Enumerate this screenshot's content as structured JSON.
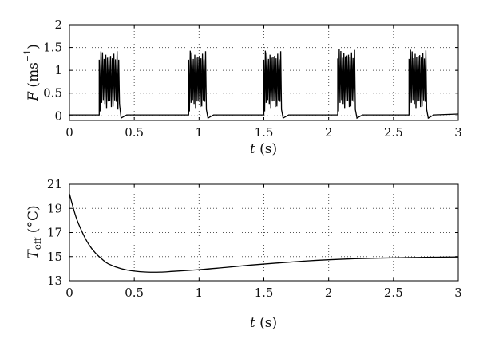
{
  "chart_data": [
    {
      "type": "line",
      "ylabel": "F (ms⁻¹)",
      "xlabel": "t (s)",
      "xlim": [
        0,
        3
      ],
      "ylim": [
        -0.1,
        2
      ],
      "x_ticks": [
        0,
        0.5,
        1,
        1.5,
        2,
        2.5,
        3
      ],
      "y_ticks": [
        0,
        0.5,
        1,
        1.5,
        2
      ],
      "x_tick_labels": [
        "0",
        "0.5",
        "1",
        "1.5",
        "2",
        "2.5",
        "3"
      ],
      "y_tick_labels": [
        "0",
        "0.5",
        "1",
        "1.5",
        "2"
      ],
      "grid": true,
      "series": [
        {
          "baseline": 0.02,
          "bursts": [
            {
              "start": 0.23,
              "end": 0.38,
              "peak": 1.45
            },
            {
              "start": 0.92,
              "end": 1.05,
              "peak": 1.45
            },
            {
              "start": 1.5,
              "end": 1.63,
              "peak": 1.45
            },
            {
              "start": 2.07,
              "end": 2.2,
              "peak": 1.48
            },
            {
              "start": 2.62,
              "end": 2.75,
              "peak": 1.47
            }
          ]
        }
      ]
    },
    {
      "type": "line",
      "ylabel": "T_eff (°C)",
      "xlabel": "t (s)",
      "xlim": [
        0,
        3
      ],
      "ylim": [
        13,
        21
      ],
      "x_ticks": [
        0,
        0.5,
        1,
        1.5,
        2,
        2.5,
        3
      ],
      "y_ticks": [
        13,
        15,
        17,
        19,
        21
      ],
      "x_tick_labels": [
        "0",
        "0.5",
        "1",
        "1.5",
        "2",
        "2.5",
        "3"
      ],
      "y_tick_labels": [
        "13",
        "15",
        "17",
        "19",
        "21"
      ],
      "grid": true,
      "series": [
        {
          "x": [
            0,
            0.05,
            0.1,
            0.15,
            0.2,
            0.25,
            0.3,
            0.4,
            0.5,
            0.6,
            0.7,
            0.8,
            1.0,
            1.2,
            1.4,
            1.6,
            1.8,
            2.0,
            2.2,
            2.4,
            2.6,
            2.8,
            3.0
          ],
          "y": [
            20.2,
            18.3,
            17.0,
            16.0,
            15.3,
            14.8,
            14.4,
            14.0,
            13.8,
            13.72,
            13.72,
            13.78,
            13.92,
            14.1,
            14.3,
            14.47,
            14.62,
            14.74,
            14.83,
            14.88,
            14.92,
            14.95,
            14.97
          ]
        }
      ]
    }
  ]
}
